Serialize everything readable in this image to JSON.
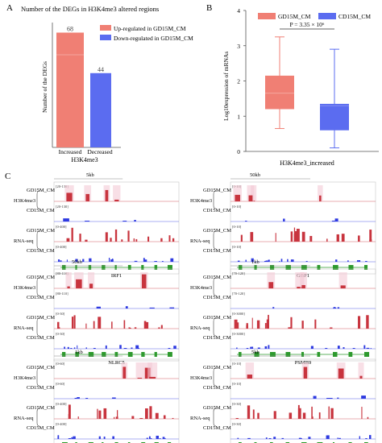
{
  "panelA": {
    "letter": "A",
    "title": "Number of the DEGs in H3K4me3 altered regions",
    "ylabel": "Number of the DEGs",
    "xlabel": "H3K4me3",
    "legend": [
      "Up-regulated in GD15M_CM",
      "Down-regulated in GD15M_CM"
    ],
    "colors": {
      "up": "#f07f74",
      "down": "#5b6cf0"
    },
    "chart_data": {
      "type": "bar",
      "categories": [
        "Increased",
        "Decreased"
      ],
      "values": [
        68,
        44
      ],
      "ylim": [
        0,
        70
      ]
    },
    "labels": [
      "68",
      "44"
    ]
  },
  "panelB": {
    "letter": "B",
    "ylabel": "Log10expression of mRNAs",
    "xlabel": "H3K4me3_increased",
    "pvalue": "P = 3.35 × 10⁶",
    "legend": [
      "GD15M_CM",
      "CD15M_CM"
    ],
    "colors": {
      "gd": "#f07f74",
      "cd": "#5b6cf0"
    },
    "yticks": [
      "0",
      "1",
      "2",
      "3",
      "4"
    ],
    "chart_data": {
      "type": "box",
      "ylim": [
        0,
        4
      ],
      "series": [
        {
          "name": "GD15M_CM",
          "min": 0.65,
          "q1": 1.2,
          "median": 1.65,
          "q3": 2.15,
          "max": 3.25
        },
        {
          "name": "CD15M_CM",
          "min": 0.1,
          "q1": 0.6,
          "median": 1.3,
          "q3": 1.35,
          "max": 2.9
        }
      ]
    }
  },
  "panelC": {
    "letter": "C",
    "tracks": [
      "GD15M_CM",
      "CD15M_CM",
      "GD15M_CM",
      "CD15M_CM"
    ],
    "groups": [
      "H3K4me3",
      "RNA-seq"
    ],
    "genes": [
      {
        "name": "IRF1",
        "scale": "5kb",
        "ranges": [
          "[20-130]",
          "[20-130]",
          "[0-400]",
          "[0-400]"
        ]
      },
      {
        "name": "GBP1",
        "scale": "50kb",
        "ranges": [
          "[0-10]",
          "[0-10]",
          "[0-10]",
          "[0-10]"
        ]
      },
      {
        "name": "NLRC5",
        "scale": "50kb",
        "ranges": [
          "[80-110]",
          "[80-110]",
          "[0-30]",
          "[0-30]"
        ]
      },
      {
        "name": "PSMB9",
        "scale": "1kb",
        "ranges": [
          "[70-120]",
          "[70-120]",
          "[0-3000]",
          "[0-3000]"
        ]
      },
      {
        "name": "SLA-DMB",
        "scale": "1kb",
        "ranges": [
          "[0-60]",
          "[0-60]",
          "[0-400]",
          "[0-400]"
        ]
      },
      {
        "name": "CD3E",
        "scale": "5kb",
        "ranges": [
          "[0-10]",
          "[0-10]",
          "[0-30]",
          "[0-30]"
        ]
      }
    ]
  }
}
